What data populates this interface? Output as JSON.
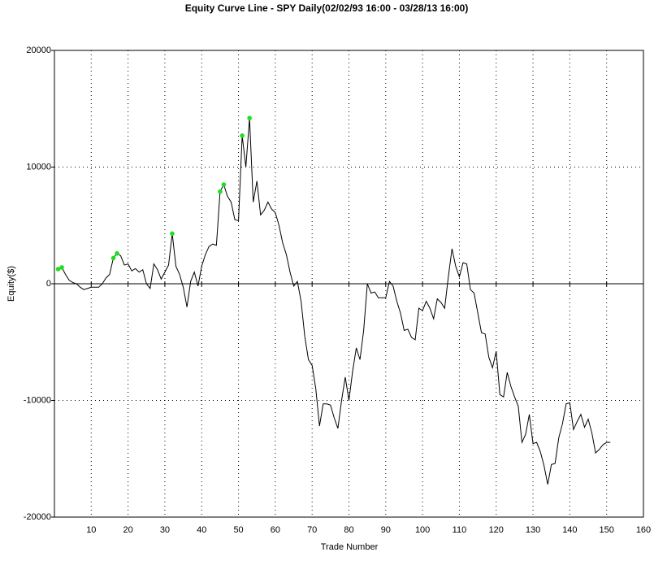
{
  "chart_data": {
    "type": "line",
    "title": "Equity Curve Line - SPY Daily(02/02/93 16:00 - 03/28/13 16:00)",
    "x_label": "Trade Number",
    "y_label": "Equity($)",
    "x": [
      1,
      2,
      3,
      4,
      5,
      6,
      7,
      8,
      9,
      10,
      11,
      12,
      13,
      14,
      15,
      16,
      17,
      18,
      19,
      20,
      21,
      22,
      23,
      24,
      25,
      26,
      27,
      28,
      29,
      30,
      31,
      32,
      33,
      34,
      35,
      36,
      37,
      38,
      39,
      40,
      41,
      42,
      43,
      44,
      45,
      46,
      47,
      48,
      49,
      50,
      51,
      52,
      53,
      54,
      55,
      56,
      57,
      58,
      59,
      60,
      61,
      62,
      63,
      64,
      65,
      66,
      67,
      68,
      69,
      70,
      71,
      72,
      73,
      74,
      75,
      76,
      77,
      78,
      79,
      80,
      81,
      82,
      83,
      84,
      85,
      86,
      87,
      88,
      89,
      90,
      91,
      92,
      93,
      94,
      95,
      96,
      97,
      98,
      99,
      100,
      101,
      102,
      103,
      104,
      105,
      106,
      107,
      108,
      109,
      110,
      111,
      112,
      113,
      114,
      115,
      116,
      117,
      118,
      119,
      120,
      121,
      122,
      123,
      124,
      125,
      126,
      127,
      128,
      129,
      130,
      131,
      132,
      133,
      134,
      135,
      136,
      137,
      138,
      139,
      140,
      141,
      142,
      143,
      144,
      145,
      146,
      147,
      148,
      149,
      150,
      151
    ],
    "series": [
      {
        "color": "#000000",
        "values": [
          1250,
          1400,
          800,
          300,
          100,
          0,
          -300,
          -500,
          -400,
          -300,
          -300,
          -300,
          0,
          500,
          800,
          2200,
          2600,
          2400,
          1600,
          1700,
          1100,
          1300,
          1000,
          1200,
          0,
          -400,
          1700,
          1200,
          400,
          1000,
          1600,
          4300,
          1500,
          800,
          -300,
          -2000,
          200,
          1000,
          -200,
          1500,
          2500,
          3200,
          3400,
          3300,
          7900,
          8500,
          7500,
          7000,
          5500,
          5400,
          12700,
          10000,
          14200,
          7000,
          8800,
          5900,
          6300,
          7000,
          6400,
          6100,
          5000,
          3500,
          2500,
          1000,
          -200,
          200,
          -1500,
          -4500,
          -6500,
          -7000,
          -9000,
          -12200,
          -10300,
          -10300,
          -10400,
          -11500,
          -12400,
          -10000,
          -8000,
          -10000,
          -7500,
          -5500,
          -6500,
          -4000,
          0,
          -800,
          -700,
          -1200,
          -1200,
          -1200,
          200,
          -200,
          -1500,
          -2500,
          -4000,
          -3900,
          -4600,
          -4800,
          -2100,
          -2300,
          -1500,
          -2100,
          -3000,
          -1300,
          -1600,
          -2100,
          600,
          3000,
          1500,
          600,
          1800,
          1700,
          -500,
          -800,
          -2500,
          -4200,
          -4300,
          -6300,
          -7200,
          -5800,
          -9500,
          -9700,
          -7600,
          -8800,
          -9700,
          -10500,
          -13600,
          -12900,
          -11200,
          -13700,
          -13600,
          -14400,
          -15600,
          -17200,
          -15500,
          -15400,
          -13200,
          -12000,
          -10300,
          -10200,
          -12500,
          -11800,
          -11200,
          -12300,
          -11600,
          -12800,
          -14500,
          -14200,
          -13800,
          -13600,
          -13600
        ]
      }
    ],
    "new_highs": {
      "color": "#22dd22",
      "x": [
        1,
        2,
        16,
        17,
        32,
        45,
        46,
        51,
        53
      ],
      "values": [
        1250,
        1400,
        2200,
        2600,
        4300,
        7900,
        8500,
        12700,
        14200
      ]
    },
    "xlim": [
      0,
      160
    ],
    "xticks": [
      10,
      20,
      30,
      40,
      50,
      60,
      70,
      80,
      90,
      100,
      110,
      120,
      130,
      140,
      150,
      160
    ],
    "ylim": [
      -20000,
      20000
    ],
    "yticks": [
      -20000,
      -10000,
      0,
      10000,
      20000
    ],
    "grid": true
  }
}
